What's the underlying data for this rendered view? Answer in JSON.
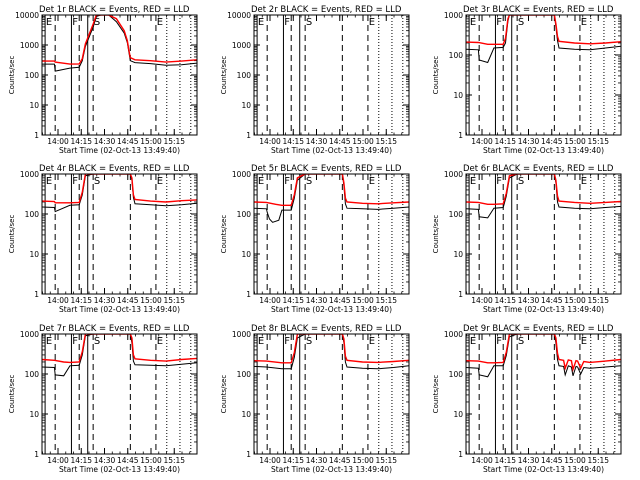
{
  "page": {
    "background": "#ffffff"
  },
  "legend": {
    "black_series": "Events",
    "red_series": "LLD",
    "black_color": "#000000",
    "red_color": "#ff0000"
  },
  "chart_data": {
    "type": "line",
    "yscale": "log",
    "ylabel": "Counts/sec",
    "xlabel": "Start Time (02-Oct-13 13:49:40)",
    "x_unit": "minutes after 13:49:40",
    "xlim": [
      0,
      100
    ],
    "x_ticks": [
      {
        "x": 10.33,
        "label": "14:00"
      },
      {
        "x": 25.33,
        "label": "14:15"
      },
      {
        "x": 40.33,
        "label": "14:30"
      },
      {
        "x": 55.33,
        "label": "14:45"
      },
      {
        "x": 70.33,
        "label": "15:00"
      },
      {
        "x": 85.33,
        "label": "15:15"
      }
    ],
    "y_tick_labels": [
      "1",
      "10",
      "100",
      "1000"
    ],
    "event_lines": {
      "solid": [
        2,
        19,
        29.5
      ],
      "dashed": [
        8.5,
        24,
        33,
        57,
        73.5
      ],
      "dotted": [
        80.5,
        89,
        96
      ]
    },
    "event_markers": [
      {
        "label": "E",
        "x": 2.5
      },
      {
        "label": "F",
        "x": 19.5
      },
      {
        "label": "S",
        "x": 33.5
      },
      {
        "label": "E",
        "x": 74
      }
    ],
    "panels": [
      {
        "title": "Det 1r BLACK = Events, RED = LLD",
        "ylim": [
          1,
          10000
        ],
        "y_ticks": [
          1,
          10,
          100,
          1000,
          10000
        ],
        "y_tick_labels": [
          "1",
          "10",
          "100",
          "1000",
          "10000"
        ],
        "series": [
          {
            "name": "Events",
            "color": "#000000",
            "x": [
              0,
              8,
              8.5,
              18,
              24,
              26,
              28,
              33,
              35,
              38,
              40,
              43,
              48,
              53,
              55,
              56,
              57,
              60,
              70,
              80,
              90,
              100
            ],
            "y": [
              230,
              230,
              135,
              170,
              180,
              300,
              900,
              4000,
              9000,
              10000,
              10000,
              10000,
              6000,
              2500,
              1200,
              600,
              300,
              260,
              240,
              210,
              220,
              250
            ]
          },
          {
            "name": "LLD",
            "color": "#ff0000",
            "x": [
              0,
              8,
              8.5,
              18,
              24,
              26,
              28,
              33,
              35,
              38,
              40,
              43,
              48,
              53,
              55,
              56,
              57,
              60,
              70,
              80,
              90,
              100
            ],
            "y": [
              290,
              290,
              270,
              230,
              235,
              350,
              1100,
              5000,
              10000,
              10000,
              10000,
              10000,
              7500,
              3000,
              1400,
              700,
              380,
              320,
              300,
              270,
              290,
              320
            ]
          }
        ]
      },
      {
        "title": "Det 2r BLACK = Events, RED = LLD",
        "ylim": [
          1,
          10000
        ],
        "y_ticks": [
          1,
          10,
          100,
          1000,
          10000
        ],
        "y_tick_labels": [
          "1",
          "10",
          "100",
          "1000",
          "10000"
        ],
        "series": []
      },
      {
        "title": "Det 3r BLACK = Events, RED = LLD",
        "ylim": [
          1,
          1000
        ],
        "y_ticks": [
          1,
          10,
          100,
          1000
        ],
        "y_tick_labels": [
          "1",
          "10",
          "100",
          "1000"
        ],
        "series": [
          {
            "name": "Events",
            "color": "#000000",
            "x": [
              0,
              8,
              8.5,
              14,
              18,
              24,
              25.5,
              27,
              28,
              33,
              57,
              58,
              59,
              60,
              70,
              80,
              90,
              100
            ],
            "y": [
              140,
              135,
              75,
              65,
              150,
              155,
              200,
              700,
              1000,
              1000,
              1000,
              500,
              230,
              150,
              140,
              135,
              150,
              165
            ]
          },
          {
            "name": "LLD",
            "color": "#ff0000",
            "x": [
              0,
              8,
              14,
              18,
              24,
              25.5,
              27,
              28,
              33,
              57,
              58,
              59,
              60,
              70,
              80,
              90,
              100
            ],
            "y": [
              210,
              205,
              185,
              185,
              185,
              260,
              800,
              1000,
              1000,
              1000,
              600,
              290,
              220,
              200,
              190,
              200,
              215
            ]
          }
        ]
      },
      {
        "title": "Det 4r BLACK = Events, RED = LLD",
        "ylim": [
          1,
          1000
        ],
        "y_ticks": [
          1,
          10,
          100,
          1000
        ],
        "y_tick_labels": [
          "1",
          "10",
          "100",
          "1000"
        ],
        "series": [
          {
            "name": "Events",
            "color": "#000000",
            "x": [
              0,
              8,
              8.5,
              18,
              24,
              26,
              28,
              33,
              57,
              58,
              59,
              60,
              70,
              80,
              90,
              100
            ],
            "y": [
              150,
              145,
              115,
              165,
              170,
              300,
              900,
              1000,
              1000,
              700,
              260,
              180,
              170,
              160,
              170,
              185
            ]
          },
          {
            "name": "LLD",
            "color": "#ff0000",
            "x": [
              0,
              8,
              8.5,
              18,
              24,
              26,
              28,
              33,
              57,
              58,
              59,
              60,
              70,
              80,
              90,
              100
            ],
            "y": [
              210,
              205,
              190,
              190,
              195,
              350,
              1000,
              1000,
              1000,
              800,
              300,
              230,
              210,
              200,
              215,
              225
            ]
          }
        ]
      },
      {
        "title": "Det 5r BLACK = Events, RED = LLD",
        "ylim": [
          1,
          1000
        ],
        "y_ticks": [
          1,
          10,
          100,
          1000
        ],
        "y_tick_labels": [
          "1",
          "10",
          "100",
          "1000"
        ],
        "series": [
          {
            "name": "Events",
            "color": "#000000",
            "x": [
              0,
              8,
              8.5,
              10,
              12,
              16,
              18,
              24,
              26,
              28,
              33,
              57,
              58,
              59,
              60,
              70,
              80,
              90,
              100
            ],
            "y": [
              140,
              135,
              110,
              75,
              62,
              70,
              125,
              125,
              250,
              700,
              1000,
              1000,
              500,
              180,
              140,
              135,
              130,
              140,
              150
            ]
          },
          {
            "name": "LLD",
            "color": "#ff0000",
            "x": [
              0,
              8,
              14,
              18,
              24,
              26,
              28,
              33,
              57,
              58,
              59,
              60,
              70,
              80,
              90,
              100
            ],
            "y": [
              200,
              195,
              175,
              165,
              165,
              300,
              800,
              1000,
              1000,
              600,
              250,
              200,
              185,
              180,
              190,
              200
            ]
          }
        ]
      },
      {
        "title": "Det 6r BLACK = Events, RED = LLD",
        "ylim": [
          1,
          1000
        ],
        "y_ticks": [
          1,
          10,
          100,
          1000
        ],
        "y_tick_labels": [
          "1",
          "10",
          "100",
          "1000"
        ],
        "series": [
          {
            "name": "Events",
            "color": "#000000",
            "x": [
              0,
              8,
              8.5,
              14,
              18,
              24,
              26,
              28,
              33,
              57,
              58,
              59,
              60,
              70,
              80,
              90,
              100
            ],
            "y": [
              135,
              130,
              85,
              80,
              140,
              145,
              280,
              800,
              1000,
              1000,
              600,
              200,
              150,
              140,
              135,
              145,
              155
            ]
          },
          {
            "name": "LLD",
            "color": "#ff0000",
            "x": [
              0,
              8,
              14,
              18,
              24,
              26,
              28,
              33,
              57,
              58,
              59,
              60,
              70,
              80,
              90,
              100
            ],
            "y": [
              200,
              195,
              175,
              175,
              180,
              330,
              900,
              1000,
              1000,
              700,
              280,
              210,
              195,
              185,
              195,
              205
            ]
          }
        ]
      },
      {
        "title": "Det 7r BLACK = Events, RED = LLD",
        "ylim": [
          1,
          1000
        ],
        "y_ticks": [
          1,
          10,
          100,
          1000
        ],
        "y_tick_labels": [
          "1",
          "10",
          "100",
          "1000"
        ],
        "series": [
          {
            "name": "Events",
            "color": "#000000",
            "x": [
              0,
              8,
              8.5,
              14,
              18,
              24,
              26,
              28,
              33,
              57,
              58,
              59,
              60,
              70,
              80,
              90,
              100
            ],
            "y": [
              150,
              145,
              95,
              90,
              160,
              165,
              300,
              900,
              1000,
              1000,
              600,
              210,
              170,
              165,
              160,
              175,
              190
            ]
          },
          {
            "name": "LLD",
            "color": "#ff0000",
            "x": [
              0,
              8,
              14,
              18,
              24,
              26,
              28,
              33,
              57,
              58,
              59,
              60,
              70,
              80,
              90,
              100
            ],
            "y": [
              230,
              220,
              200,
              195,
              200,
              360,
              1000,
              1000,
              1000,
              800,
              300,
              240,
              220,
              210,
              230,
              245
            ]
          }
        ]
      },
      {
        "title": "Det 8r BLACK = Events, RED = LLD",
        "ylim": [
          1,
          1000
        ],
        "y_ticks": [
          1,
          10,
          100,
          1000
        ],
        "y_tick_labels": [
          "1",
          "10",
          "100",
          "1000"
        ],
        "series": [
          {
            "name": "Events",
            "color": "#000000",
            "x": [
              0,
              8,
              18,
              24,
              26,
              28,
              33,
              57,
              58,
              59,
              60,
              70,
              80,
              90,
              100
            ],
            "y": [
              155,
              150,
              135,
              135,
              260,
              800,
              1000,
              1000,
              600,
              200,
              150,
              140,
              135,
              145,
              160
            ]
          },
          {
            "name": "LLD",
            "color": "#ff0000",
            "x": [
              0,
              8,
              18,
              24,
              26,
              28,
              33,
              57,
              58,
              59,
              60,
              70,
              80,
              90,
              100
            ],
            "y": [
              215,
              210,
              190,
              190,
              340,
              1000,
              1000,
              1000,
              750,
              280,
              220,
              200,
              195,
              205,
              220
            ]
          }
        ]
      },
      {
        "title": "Det 9r BLACK = Events, RED = LLD",
        "ylim": [
          1,
          1000
        ],
        "y_ticks": [
          1,
          10,
          100,
          1000
        ],
        "y_tick_labels": [
          "1",
          "10",
          "100",
          "1000"
        ],
        "series": [
          {
            "name": "Events",
            "color": "#000000",
            "x": [
              0,
              8,
              8.5,
              14,
              18,
              24,
              26,
              28,
              33,
              57,
              58,
              59,
              60,
              63,
              64,
              66,
              68,
              69,
              71,
              72,
              74,
              76,
              80,
              90,
              100
            ],
            "y": [
              145,
              140,
              95,
              85,
              160,
              160,
              290,
              850,
              1000,
              1000,
              600,
              230,
              160,
              155,
              95,
              160,
              150,
              90,
              155,
              150,
              100,
              145,
              140,
              150,
              160
            ]
          },
          {
            "name": "LLD",
            "color": "#ff0000",
            "x": [
              0,
              8,
              14,
              18,
              24,
              26,
              28,
              33,
              57,
              58,
              59,
              60,
              63,
              64,
              66,
              68,
              69,
              71,
              72,
              74,
              76,
              80,
              90,
              100
            ],
            "y": [
              215,
              210,
              190,
              190,
              195,
              350,
              1000,
              1000,
              1000,
              800,
              330,
              230,
              220,
              140,
              225,
              215,
              130,
              215,
              210,
              140,
              205,
              195,
              210,
              230
            ]
          }
        ]
      }
    ]
  }
}
